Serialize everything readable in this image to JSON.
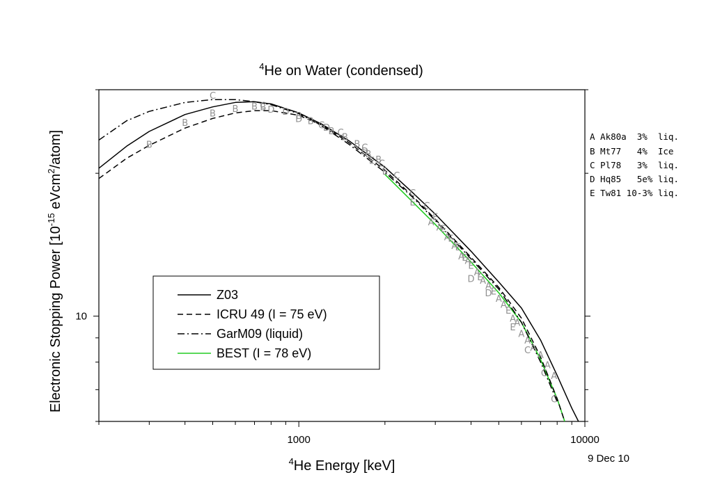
{
  "chart_data": {
    "type": "line",
    "title_sup": "4",
    "title": "He on Water (condensed)",
    "xlabel_sup": "4",
    "xlabel": "He Energy [keV]",
    "ylabel": "Electronic Stopping Power [10",
    "ylabel_exp1": "-15",
    "ylabel_mid": " eVcm",
    "ylabel_exp2": "2",
    "ylabel_end": "/atom]",
    "x_scale": "log",
    "y_scale": "log",
    "xlim": [
      200,
      10000
    ],
    "ylim": [
      6,
      30
    ],
    "x_tick_labels": [
      {
        "value": 1000,
        "label": "1000"
      },
      {
        "value": 10000,
        "label": "10000"
      }
    ],
    "y_tick_labels": [
      {
        "value": 10,
        "label": "10"
      }
    ],
    "date": "9 Dec 10",
    "legend_position": "lower-left",
    "series": [
      {
        "name": "Z03",
        "style": "solid",
        "color": "#000000",
        "x": [
          200,
          250,
          300,
          400,
          500,
          600,
          700,
          800,
          1000,
          1200,
          1500,
          2000,
          2500,
          3000,
          4000,
          5000,
          6000,
          7000,
          8000,
          9000,
          9500
        ],
        "y": [
          20.5,
          22.8,
          24.5,
          26.6,
          27.6,
          28.2,
          28.3,
          28.0,
          26.8,
          25.4,
          23.4,
          20.6,
          18.2,
          16.4,
          13.7,
          11.8,
          10.4,
          8.9,
          7.5,
          6.4,
          6.0
        ]
      },
      {
        "name": "ICRU 49 (I = 75 eV)",
        "style": "dashed",
        "color": "#000000",
        "x": [
          200,
          250,
          300,
          400,
          500,
          600,
          700,
          800,
          1000,
          1200,
          1500,
          2000,
          2500,
          3000,
          4000,
          5000,
          6000,
          7000,
          8000,
          8500
        ],
        "y": [
          19.5,
          21.5,
          22.9,
          24.9,
          26.1,
          26.8,
          27.1,
          27.1,
          26.5,
          25.3,
          23.2,
          20.3,
          17.9,
          16.0,
          13.3,
          11.5,
          9.9,
          8.2,
          6.7,
          6.0
        ]
      },
      {
        "name": "GarM09 (liquid)",
        "style": "dashdot",
        "color": "#000000",
        "x": [
          200,
          250,
          300,
          400,
          500,
          600,
          700,
          800,
          1000,
          1200,
          1500,
          2000,
          2500,
          3000,
          4000,
          5000,
          6000,
          7000,
          8000
        ],
        "y": [
          23.5,
          25.8,
          27.0,
          28.2,
          28.6,
          28.6,
          28.3,
          27.9,
          26.7,
          25.2,
          23.0,
          20.1,
          17.8,
          15.9,
          13.2,
          11.4,
          9.7,
          8.0,
          6.6
        ]
      },
      {
        "name": "BEST (I = 78 eV)",
        "style": "solid",
        "color": "#22cc22",
        "x": [
          2000,
          2500,
          3000,
          4000,
          5000,
          6000,
          7000,
          8000,
          8500
        ],
        "y": [
          19.9,
          17.4,
          15.6,
          13.0,
          11.2,
          9.7,
          8.1,
          6.7,
          6.0
        ]
      }
    ],
    "reference_letter_color": "#909090",
    "reference_points": [
      {
        "letter": "B",
        "x": 300,
        "y": 23.0
      },
      {
        "letter": "B",
        "x": 400,
        "y": 25.6
      },
      {
        "letter": "B",
        "x": 500,
        "y": 26.8
      },
      {
        "letter": "C",
        "x": 500,
        "y": 29.2
      },
      {
        "letter": "B",
        "x": 600,
        "y": 27.4
      },
      {
        "letter": "B",
        "x": 700,
        "y": 27.7
      },
      {
        "letter": "B",
        "x": 750,
        "y": 27.6
      },
      {
        "letter": "C",
        "x": 750,
        "y": 27.8
      },
      {
        "letter": "D",
        "x": 800,
        "y": 27.3
      },
      {
        "letter": "D",
        "x": 900,
        "y": 27.0
      },
      {
        "letter": "B",
        "x": 1000,
        "y": 26.5
      },
      {
        "letter": "D",
        "x": 1000,
        "y": 26.1
      },
      {
        "letter": "B",
        "x": 1100,
        "y": 25.8
      },
      {
        "letter": "C",
        "x": 1200,
        "y": 25.3
      },
      {
        "letter": "D",
        "x": 1250,
        "y": 25.0
      },
      {
        "letter": "B",
        "x": 1300,
        "y": 24.6
      },
      {
        "letter": "C",
        "x": 1400,
        "y": 24.4
      },
      {
        "letter": "B",
        "x": 1450,
        "y": 23.9
      },
      {
        "letter": "B",
        "x": 1600,
        "y": 23.1
      },
      {
        "letter": "C",
        "x": 1700,
        "y": 22.7
      },
      {
        "letter": "D",
        "x": 1700,
        "y": 22.3
      },
      {
        "letter": "B",
        "x": 1750,
        "y": 22.0
      },
      {
        "letter": "E",
        "x": 1800,
        "y": 21.3
      },
      {
        "letter": "B",
        "x": 1900,
        "y": 21.4
      },
      {
        "letter": "C",
        "x": 1950,
        "y": 21.0
      },
      {
        "letter": "E",
        "x": 2000,
        "y": 20.2
      },
      {
        "letter": "C",
        "x": 2200,
        "y": 19.8
      },
      {
        "letter": "C",
        "x": 2500,
        "y": 18.2
      },
      {
        "letter": "E",
        "x": 2500,
        "y": 17.4
      },
      {
        "letter": "C",
        "x": 2800,
        "y": 17.1
      },
      {
        "letter": "A",
        "x": 2900,
        "y": 15.8
      },
      {
        "letter": "E",
        "x": 3000,
        "y": 16.2
      },
      {
        "letter": "A",
        "x": 3100,
        "y": 15.4
      },
      {
        "letter": "E",
        "x": 3200,
        "y": 15.3
      },
      {
        "letter": "A",
        "x": 3300,
        "y": 14.7
      },
      {
        "letter": "E",
        "x": 3400,
        "y": 14.6
      },
      {
        "letter": "A",
        "x": 3500,
        "y": 14.1
      },
      {
        "letter": "E",
        "x": 3600,
        "y": 14.0
      },
      {
        "letter": "A",
        "x": 3700,
        "y": 13.4
      },
      {
        "letter": "E",
        "x": 3800,
        "y": 13.3
      },
      {
        "letter": "A",
        "x": 3900,
        "y": 13.1
      },
      {
        "letter": "E",
        "x": 4000,
        "y": 12.8
      },
      {
        "letter": "D",
        "x": 4000,
        "y": 12.0
      },
      {
        "letter": "A",
        "x": 4200,
        "y": 12.4
      },
      {
        "letter": "E",
        "x": 4300,
        "y": 12.1
      },
      {
        "letter": "A",
        "x": 4400,
        "y": 11.9
      },
      {
        "letter": "A",
        "x": 4600,
        "y": 11.6
      },
      {
        "letter": "D",
        "x": 4600,
        "y": 11.2
      },
      {
        "letter": "E",
        "x": 4800,
        "y": 11.3
      },
      {
        "letter": "A",
        "x": 5000,
        "y": 10.9
      },
      {
        "letter": "A",
        "x": 5200,
        "y": 10.6
      },
      {
        "letter": "E",
        "x": 5400,
        "y": 10.3
      },
      {
        "letter": "A",
        "x": 5600,
        "y": 9.9
      },
      {
        "letter": "E",
        "x": 5600,
        "y": 9.5
      },
      {
        "letter": "A",
        "x": 5800,
        "y": 9.7
      },
      {
        "letter": "A",
        "x": 6000,
        "y": 9.2
      },
      {
        "letter": "A",
        "x": 6300,
        "y": 8.9
      },
      {
        "letter": "C",
        "x": 6300,
        "y": 8.5
      },
      {
        "letter": "A",
        "x": 6600,
        "y": 8.6
      },
      {
        "letter": "A",
        "x": 7000,
        "y": 8.3
      },
      {
        "letter": "C",
        "x": 7200,
        "y": 7.6
      },
      {
        "letter": "A",
        "x": 7400,
        "y": 7.9
      },
      {
        "letter": "A",
        "x": 7800,
        "y": 7.5
      },
      {
        "letter": "C",
        "x": 7800,
        "y": 6.7
      }
    ],
    "references": [
      {
        "key": "A",
        "text": "A Ak80a  3%  liq."
      },
      {
        "key": "B",
        "text": "B Mt77   4%  Ice"
      },
      {
        "key": "C",
        "text": "C Pl78   3%  liq."
      },
      {
        "key": "D",
        "text": "D Hq85   5e% liq."
      },
      {
        "key": "E",
        "text": "E Tw81 10-3% liq."
      }
    ]
  }
}
